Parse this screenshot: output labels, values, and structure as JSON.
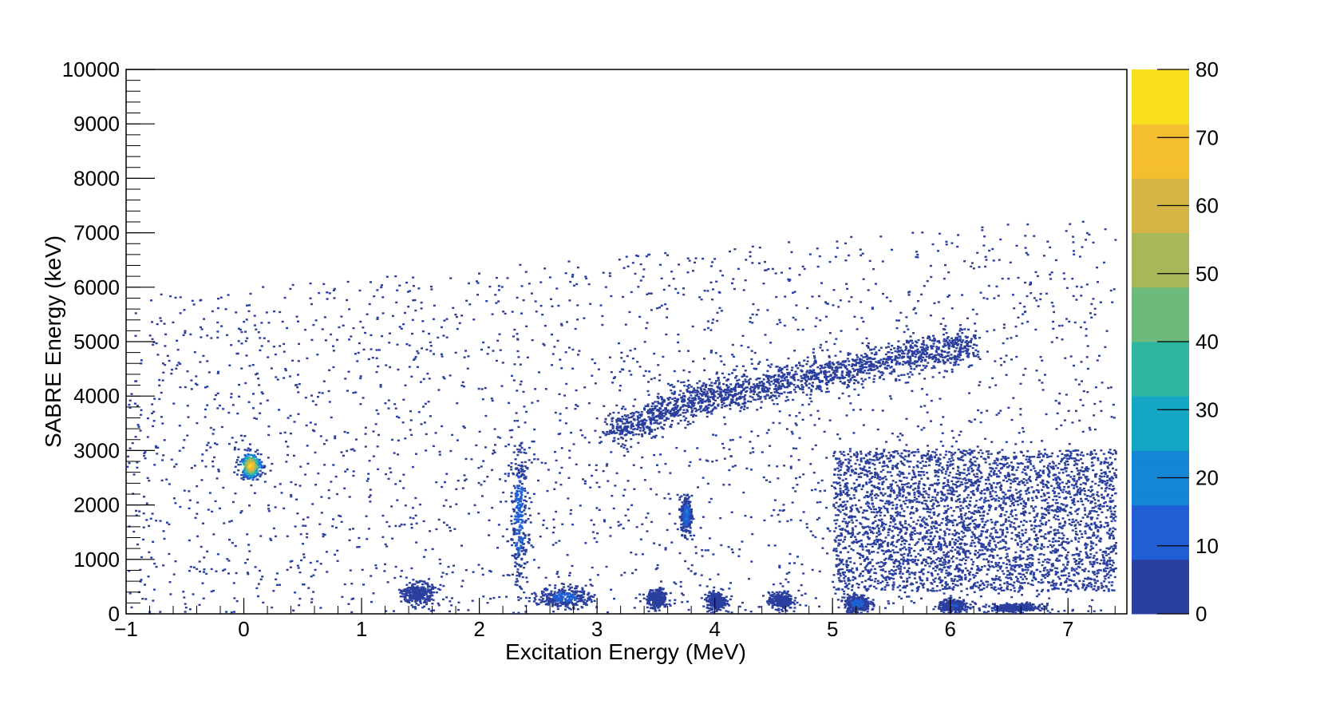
{
  "chart_data": {
    "type": "heatmap",
    "title": "",
    "xlabel": "Excitation Energy (MeV)",
    "ylabel": "SABRE Energy (keV)",
    "xlim": [
      -1,
      7.5
    ],
    "ylim": [
      0,
      10000
    ],
    "x_ticks": [
      -1,
      0,
      1,
      2,
      3,
      4,
      5,
      6,
      7
    ],
    "y_ticks": [
      0,
      1000,
      2000,
      3000,
      4000,
      5000,
      6000,
      7000,
      8000,
      9000,
      10000
    ],
    "colorbar": {
      "range": [
        0,
        80
      ],
      "ticks": [
        0,
        10,
        20,
        30,
        40,
        50,
        60,
        70,
        80
      ],
      "colors": [
        "#2b3f9e",
        "#1f5fd3",
        "#1585d6",
        "#14a6c4",
        "#2fb6a3",
        "#6cbb7c",
        "#a8b858",
        "#d3b445",
        "#f5bd30",
        "#f9e01c",
        "#fafa14"
      ]
    },
    "grid": false,
    "clusters": [
      {
        "x": 0.05,
        "y": 2700,
        "x_width": 0.18,
        "y_width": 500,
        "peak_counts": 75
      },
      {
        "x": 1.47,
        "y": 350,
        "x_width": 0.25,
        "y_width": 400,
        "peak_counts": 6
      },
      {
        "x": 2.33,
        "y": 1800,
        "x_width": 0.15,
        "y_width": 2700,
        "peak_counts": 14
      },
      {
        "x": 2.72,
        "y": 280,
        "x_width": 0.45,
        "y_width": 400,
        "peak_counts": 12
      },
      {
        "x": 3.5,
        "y": 250,
        "x_width": 0.15,
        "y_width": 350,
        "peak_counts": 5
      },
      {
        "x": 3.75,
        "y": 1800,
        "x_width": 0.09,
        "y_width": 700,
        "peak_counts": 18
      },
      {
        "x": 4.0,
        "y": 220,
        "x_width": 0.15,
        "y_width": 300,
        "peak_counts": 5
      },
      {
        "x": 4.55,
        "y": 220,
        "x_width": 0.2,
        "y_width": 300,
        "peak_counts": 6
      },
      {
        "x": 5.2,
        "y": 170,
        "x_width": 0.22,
        "y_width": 320,
        "peak_counts": 13
      },
      {
        "x": 6.02,
        "y": 130,
        "x_width": 0.25,
        "y_width": 220,
        "peak_counts": 9
      },
      {
        "x": 6.55,
        "y": 90,
        "x_width": 0.45,
        "y_width": 150,
        "peak_counts": 4
      }
    ],
    "bands": [
      {
        "description_points": [
          [
            3.1,
            3300
          ],
          [
            3.8,
            3900
          ],
          [
            4.6,
            4250
          ],
          [
            5.4,
            4600
          ],
          [
            6.2,
            4950
          ]
        ],
        "peak_counts": 4
      },
      {
        "region_x": [
          5.0,
          7.4
        ],
        "region_y": [
          400,
          3000
        ],
        "peak_counts": 3
      }
    ]
  }
}
